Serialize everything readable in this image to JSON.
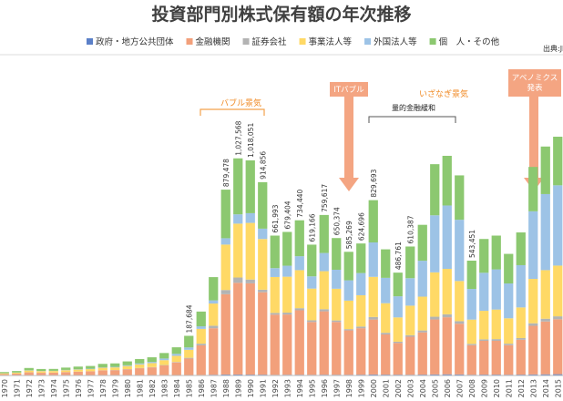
{
  "chart_data": {
    "type": "stacked-bar",
    "title": "投資部門別株式保有額の年次推移",
    "source": "出典:JPX",
    "categories": [
      "1970",
      "1971",
      "1972",
      "1973",
      "1974",
      "1975",
      "1976",
      "1977",
      "1978",
      "1979",
      "1980",
      "1981",
      "1982",
      "1983",
      "1984",
      "1985",
      "1986",
      "1987",
      "1988",
      "1989",
      "1990",
      "1991",
      "1992",
      "1993",
      "1994",
      "1995",
      "1996",
      "1997",
      "1998",
      "1999",
      "2000",
      "2001",
      "2002",
      "2003",
      "2004",
      "2005",
      "2006",
      "2007",
      "2008",
      "2009",
      "2010",
      "2011",
      "2012",
      "2013",
      "2014",
      "2015"
    ],
    "series": [
      {
        "name": "政府・地方公共団体",
        "color": "#5b80c8",
        "values": [
          500,
          600,
          700,
          700,
          700,
          800,
          800,
          900,
          1000,
          1000,
          1100,
          1200,
          1300,
          1500,
          1700,
          1984,
          2500,
          3500,
          4478,
          4568,
          4051,
          3856,
          2993,
          3404,
          3440,
          3166,
          3617,
          3374,
          3269,
          3696,
          4693,
          4000,
          3761,
          3387,
          4000,
          5000,
          5500,
          5000,
          3451,
          4000,
          4000,
          3500,
          4000,
          5000,
          5500,
          6000
        ]
      },
      {
        "name": "金融機関",
        "color": "#f2a07b",
        "values": [
          6000,
          8000,
          14000,
          12000,
          12500,
          15000,
          17000,
          18500,
          23000,
          24000,
          28000,
          33000,
          37000,
          46000,
          60000,
          78000,
          140000,
          220000,
          380000,
          434000,
          432000,
          390000,
          285000,
          285000,
          305000,
          250000,
          300000,
          250000,
          210000,
          220000,
          260000,
          190000,
          150000,
          180000,
          200000,
          260000,
          270000,
          240000,
          140000,
          160000,
          160000,
          140000,
          165000,
          230000,
          250000,
          260000
        ]
      },
      {
        "name": "証券会社",
        "color": "#b3b3b3",
        "values": [
          200,
          300,
          500,
          400,
          400,
          500,
          500,
          600,
          700,
          700,
          1000,
          1200,
          1300,
          1800,
          2200,
          3500,
          8000,
          12000,
          20000,
          25000,
          18000,
          12000,
          8000,
          9000,
          10000,
          8000,
          10000,
          7000,
          6000,
          8000,
          12000,
          8000,
          6000,
          7000,
          9000,
          13000,
          14000,
          12000,
          6000,
          7000,
          8000,
          7000,
          8000,
          12000,
          13000,
          14000
        ]
      },
      {
        "name": "事業法人等",
        "color": "#ffd966",
        "values": [
          3500,
          4500,
          8000,
          7500,
          7500,
          8500,
          9500,
          10000,
          12000,
          12500,
          14500,
          17000,
          19000,
          23000,
          29000,
          38000,
          70000,
          105000,
          215000,
          255000,
          268000,
          240000,
          170000,
          170000,
          180000,
          150000,
          180000,
          150000,
          135000,
          148000,
          190000,
          140000,
          115000,
          140000,
          160000,
          210000,
          215000,
          190000,
          115000,
          135000,
          140000,
          120000,
          145000,
          210000,
          230000,
          240000
        ]
      },
      {
        "name": "外国法人等",
        "color": "#9dc3e6",
        "values": [
          500,
          700,
          1200,
          1000,
          900,
          1500,
          1800,
          2000,
          2200,
          2500,
          3500,
          4500,
          5500,
          8000,
          9500,
          11200,
          12000,
          15000,
          30000,
          44000,
          46000,
          49000,
          42000,
          52000,
          66000,
          58000,
          86000,
          90000,
          96000,
          105000,
          163000,
          120000,
          100000,
          130000,
          170000,
          270000,
          300000,
          290000,
          145000,
          180000,
          190000,
          165000,
          200000,
          320000,
          360000,
          380000
        ]
      },
      {
        "name": "個　人・その他",
        "color": "#8cc870",
        "values": [
          5500,
          7000,
          11000,
          9000,
          9000,
          11000,
          12500,
          13000,
          16000,
          16500,
          18500,
          21000,
          22000,
          26000,
          31000,
          55000,
          70000,
          110000,
          230000,
          265000,
          250000,
          220000,
          154000,
          160000,
          170000,
          150000,
          180000,
          150000,
          135000,
          140000,
          200000,
          135000,
          112000,
          150000,
          170000,
          242000,
          235000,
          210000,
          134000,
          160000,
          160000,
          140000,
          155000,
          210000,
          225000,
          230000
        ]
      }
    ],
    "total_labels": [
      null,
      null,
      null,
      null,
      null,
      null,
      null,
      null,
      null,
      null,
      null,
      null,
      null,
      null,
      null,
      "187,684",
      null,
      null,
      "879,478",
      "1,027,568",
      "1,018,051",
      "914,856",
      "661,993",
      "679,404",
      "734,440",
      "619,166",
      "759,617",
      "650,374",
      "585,269",
      "624,696",
      "829,693",
      null,
      "486,761",
      "610,387",
      null,
      null,
      null,
      null,
      "543,451",
      null,
      null,
      null,
      null,
      null,
      null,
      null
    ],
    "annotations": {
      "bubble": "バブル景気",
      "it_bubble": "ITバブル",
      "izanagi": "いざなぎ景気",
      "qe": "量的金融緩和",
      "abenomics": "アベノミクス\n発表"
    }
  }
}
